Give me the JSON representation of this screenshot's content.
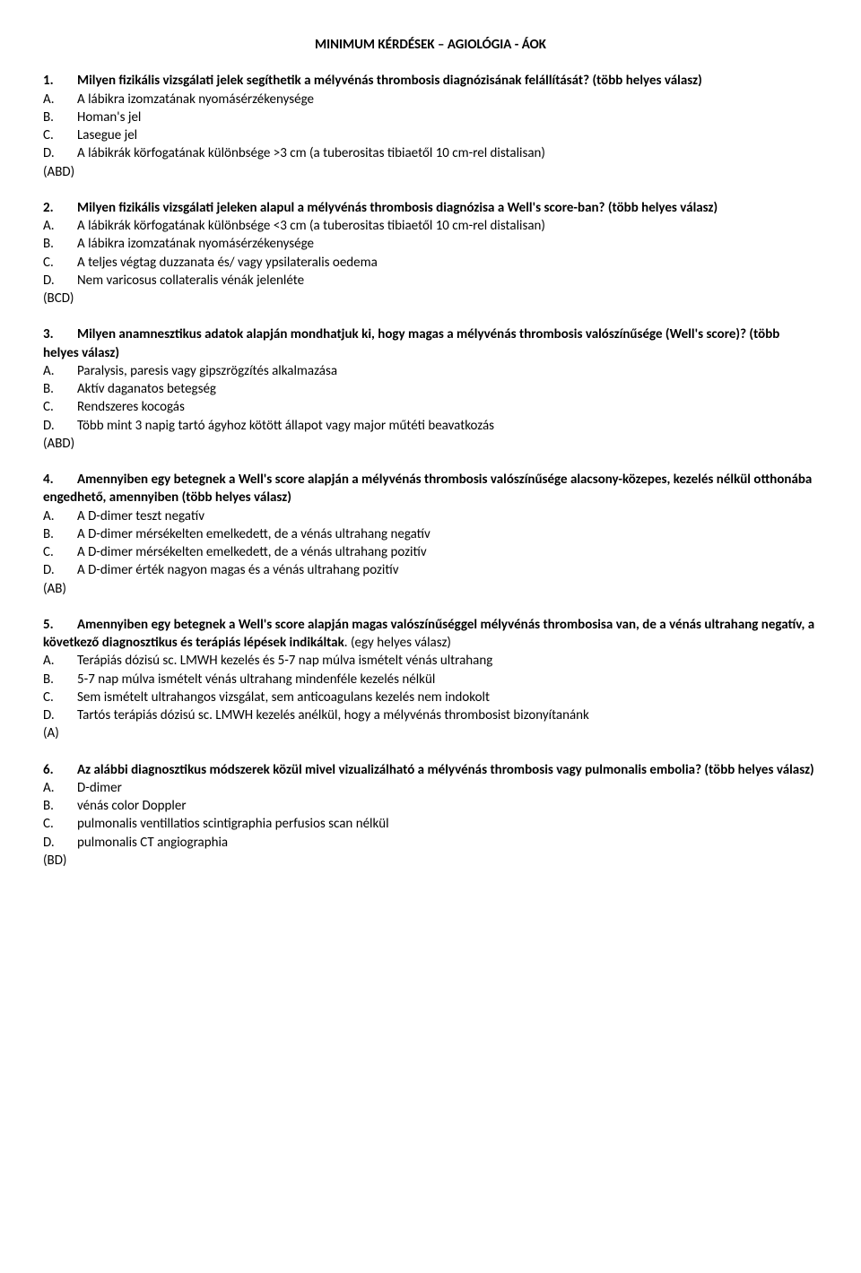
{
  "title": "MINIMUM KÉRDÉSEK – AGIOLÓGIA - ÁOK",
  "q1": {
    "num": "1.",
    "text": "Milyen fizikális vizsgálati jelek segíthetik a mélyvénás thrombosis diagnózisának felállítását? (több helyes válasz)",
    "a": "A lábikra izomzatának nyomásérzékenysége",
    "b": "Homan's jel",
    "c": "Lasegue jel",
    "d": "A lábikrák körfogatának különbsége >3 cm (a tuberositas tibiaetől 10 cm-rel distalisan)",
    "ans": "(ABD)"
  },
  "q2": {
    "num": "2.",
    "text": "Milyen fizikális vizsgálati jeleken alapul a mélyvénás thrombosis diagnózisa a Well's score-ban? (több helyes válasz)",
    "a": "A lábikrák körfogatának különbsége <3 cm (a tuberositas tibiaetől 10 cm-rel distalisan)",
    "b": "A lábikra izomzatának nyomásérzékenysége",
    "c": "A teljes végtag duzzanata és/ vagy ypsilateralis oedema",
    "d": "Nem varicosus collateralis vénák jelenléte",
    "ans": "(BCD)"
  },
  "q3": {
    "num": "3.",
    "text": "Milyen anamnesztikus adatok alapján mondhatjuk ki, hogy magas a mélyvénás thrombosis valószínűsége (Well's score)? (több helyes válasz)",
    "a": "Paralysis, paresis vagy gipszrögzítés alkalmazása",
    "b": "Aktív daganatos betegség",
    "c": "Rendszeres kocogás",
    "d": "Több mint 3 napig tartó ágyhoz kötött állapot vagy major műtéti beavatkozás",
    "ans": "(ABD)"
  },
  "q4": {
    "num": "4.",
    "text": "Amennyiben egy betegnek a Well's score alapján a mélyvénás thrombosis valószínűsége alacsony-közepes, kezelés nélkül otthonába engedhető, amennyiben (több helyes válasz)",
    "a": "A D-dimer teszt negatív",
    "b": "A D-dimer mérsékelten emelkedett, de a vénás ultrahang negatív",
    "c": "A D-dimer mérsékelten emelkedett, de a vénás ultrahang pozitív",
    "d": "A D-dimer érték nagyon magas és a vénás ultrahang pozitív",
    "ans": "(AB)"
  },
  "q5": {
    "num": "5.",
    "text1": "Amennyiben egy betegnek a Well's score alapján magas valószínűséggel mélyvénás thrombosisa van, de a vénás ultrahang negatív, a következő diagnosztikus és terápiás lépések indikáltak",
    "text2": ". (egy helyes válasz)",
    "a": "Terápiás dózisú sc. LMWH kezelés és 5-7 nap múlva ismételt vénás ultrahang",
    "b": "5-7 nap múlva ismételt vénás ultrahang mindenféle kezelés nélkül",
    "c": "Sem ismételt ultrahangos vizsgálat, sem anticoagulans kezelés nem indokolt",
    "d": "Tartós terápiás dózisú sc. LMWH kezelés anélkül, hogy a mélyvénás thrombosist bizonyítanánk",
    "ans": "(A)"
  },
  "q6": {
    "num": "6.",
    "text": "Az alábbi diagnosztikus módszerek közül mivel vizualizálható a mélyvénás thrombosis vagy pulmonalis embolia? (több helyes válasz)",
    "a": "D-dimer",
    "b": "vénás color Doppler",
    "c": "pulmonalis ventillatios scintigraphia perfusios scan nélkül",
    "d": "pulmonalis CT angiographia",
    "ans": "(BD)"
  }
}
